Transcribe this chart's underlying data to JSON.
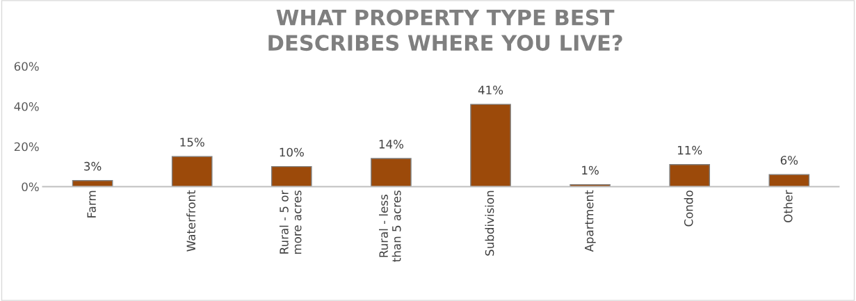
{
  "chart_data": {
    "type": "bar",
    "title": "WHAT PROPERTY TYPE BEST\nDESCRIBES WHERE YOU LIVE?",
    "categories": [
      "Farm",
      "Waterfront",
      "Rural - 5 or\nmore acres",
      "Rural - less\nthan 5 acres",
      "Subdivision",
      "Apartment",
      "Condo",
      "Other"
    ],
    "values": [
      3,
      15,
      10,
      14,
      41,
      1,
      11,
      6
    ],
    "value_labels": [
      "3%",
      "15%",
      "10%",
      "14%",
      "41%",
      "1%",
      "11%",
      "6%"
    ],
    "color": "#9c4a0a",
    "ylim": [
      0,
      60
    ],
    "yticks": [
      {
        "value": 0,
        "label": "0%"
      },
      {
        "value": 20,
        "label": "20%"
      },
      {
        "value": 40,
        "label": "40%"
      },
      {
        "value": 60,
        "label": "60%"
      }
    ],
    "grid": false
  }
}
